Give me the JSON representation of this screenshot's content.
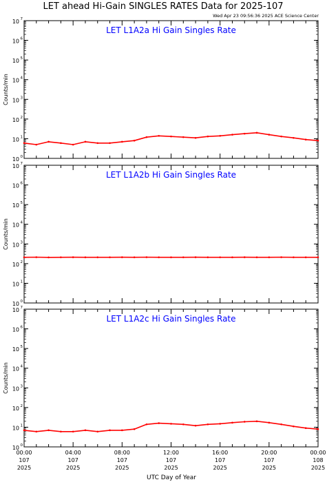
{
  "figure": {
    "title": "LET ahead Hi-Gain SINGLES RATES Data for 2025-107",
    "timestamp": "Wed Apr 23 09:56:36 2025 ACE Science Center",
    "xlabel": "UTC Day of Year"
  },
  "colors": {
    "series": "#ff0000",
    "panel_title": "#0000ff",
    "axes": "#000000"
  },
  "chart_data": [
    {
      "type": "line",
      "title": "LET L1A2a Hi Gain Singles Rate",
      "ylabel": "Counts/min",
      "yscale": "log",
      "ylim": [
        1,
        10000000
      ],
      "ytick_labels": [
        {
          "base": "10",
          "exp": "0"
        },
        {
          "base": "10",
          "exp": "1"
        },
        {
          "base": "10",
          "exp": "2"
        },
        {
          "base": "10",
          "exp": "3"
        },
        {
          "base": "10",
          "exp": "4"
        },
        {
          "base": "10",
          "exp": "5"
        },
        {
          "base": "10",
          "exp": "6"
        },
        {
          "base": "10",
          "exp": "7"
        }
      ],
      "xlim": [
        "00:00",
        "24:00"
      ],
      "x": [
        "00:00",
        "01:00",
        "02:00",
        "03:00",
        "04:00",
        "05:00",
        "06:00",
        "07:00",
        "08:00",
        "09:00",
        "10:00",
        "11:00",
        "12:00",
        "13:00",
        "14:00",
        "15:00",
        "16:00",
        "17:00",
        "18:00",
        "19:00",
        "20:00",
        "21:00",
        "22:00",
        "23:00",
        "24:00"
      ],
      "series": [
        {
          "values": [
            6,
            5,
            7,
            6,
            5,
            7,
            6,
            6,
            7,
            8,
            12,
            14,
            13,
            12,
            11,
            13,
            14,
            16,
            18,
            20,
            16,
            13,
            11,
            9,
            8
          ]
        }
      ]
    },
    {
      "type": "line",
      "title": "LET L1A2b Hi Gain Singles Rate",
      "ylabel": "Counts/min",
      "yscale": "log",
      "ylim": [
        1,
        10000000
      ],
      "ytick_labels": [
        {
          "base": "10",
          "exp": "0"
        },
        {
          "base": "10",
          "exp": "1"
        },
        {
          "base": "10",
          "exp": "2"
        },
        {
          "base": "10",
          "exp": "3"
        },
        {
          "base": "10",
          "exp": "4"
        },
        {
          "base": "10",
          "exp": "5"
        },
        {
          "base": "10",
          "exp": "6"
        },
        {
          "base": "10",
          "exp": "7"
        }
      ],
      "xlim": [
        "00:00",
        "24:00"
      ],
      "x": [
        "00:00",
        "01:00",
        "02:00",
        "03:00",
        "04:00",
        "05:00",
        "06:00",
        "07:00",
        "08:00",
        "09:00",
        "10:00",
        "11:00",
        "12:00",
        "13:00",
        "14:00",
        "15:00",
        "16:00",
        "17:00",
        "18:00",
        "19:00",
        "20:00",
        "21:00",
        "22:00",
        "23:00",
        "24:00"
      ],
      "series": [
        {
          "values": [
            210,
            212,
            208,
            210,
            211,
            209,
            210,
            210,
            211,
            210,
            212,
            210,
            209,
            210,
            211,
            210,
            210,
            209,
            211,
            210,
            210,
            212,
            210,
            209,
            210
          ]
        }
      ]
    },
    {
      "type": "line",
      "title": "LET L1A2c Hi Gain Singles Rate",
      "ylabel": "Counts/min",
      "yscale": "log",
      "ylim": [
        1,
        10000000
      ],
      "ytick_labels": [
        {
          "base": "10",
          "exp": "0"
        },
        {
          "base": "10",
          "exp": "1"
        },
        {
          "base": "10",
          "exp": "2"
        },
        {
          "base": "10",
          "exp": "3"
        },
        {
          "base": "10",
          "exp": "4"
        },
        {
          "base": "10",
          "exp": "5"
        },
        {
          "base": "10",
          "exp": "6"
        },
        {
          "base": "10",
          "exp": "7"
        }
      ],
      "xlim": [
        "00:00",
        "24:00"
      ],
      "x": [
        "00:00",
        "01:00",
        "02:00",
        "03:00",
        "04:00",
        "05:00",
        "06:00",
        "07:00",
        "08:00",
        "09:00",
        "10:00",
        "11:00",
        "12:00",
        "13:00",
        "14:00",
        "15:00",
        "16:00",
        "17:00",
        "18:00",
        "19:00",
        "20:00",
        "21:00",
        "22:00",
        "23:00",
        "24:00"
      ],
      "series": [
        {
          "values": [
            7,
            6,
            7,
            6,
            6,
            7,
            6,
            7,
            7,
            8,
            14,
            16,
            15,
            14,
            12,
            14,
            15,
            17,
            19,
            20,
            17,
            14,
            11,
            9,
            8
          ]
        }
      ]
    }
  ],
  "xticks": [
    {
      "time": "00:00",
      "doy": "107",
      "year": "2025"
    },
    {
      "time": "04:00",
      "doy": "107",
      "year": "2025"
    },
    {
      "time": "08:00",
      "doy": "107",
      "year": "2025"
    },
    {
      "time": "12:00",
      "doy": "107",
      "year": "2025"
    },
    {
      "time": "16:00",
      "doy": "107",
      "year": "2025"
    },
    {
      "time": "20:00",
      "doy": "107",
      "year": "2025"
    },
    {
      "time": "00:00",
      "doy": "108",
      "year": "2025"
    }
  ]
}
